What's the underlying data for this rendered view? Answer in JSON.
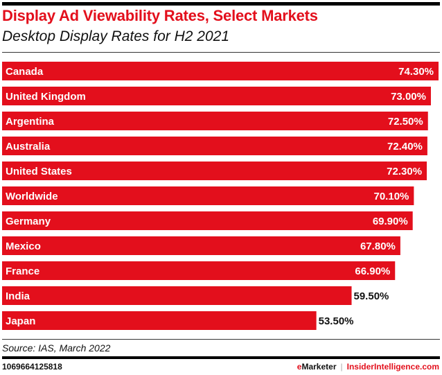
{
  "header": {
    "title": "Display Ad Viewability Rates, Select Markets",
    "subtitle": "Desktop Display Rates for H2 2021"
  },
  "footer": {
    "source": "Source: IAS, March 2022",
    "chart_id": "1069664125818",
    "brand_e": "e",
    "brand_marketer": "Marketer",
    "brand_separator": "|",
    "brand_site": "InsiderIntelligence.com"
  },
  "colors": {
    "bar": "#e30f1c",
    "label_inside": "#ffffff",
    "label_outside": "#111111"
  },
  "chart_data": {
    "type": "bar",
    "orientation": "horizontal",
    "title": "Display Ad Viewability Rates, Select Markets",
    "subtitle": "Desktop Display Rates for H2 2021",
    "xlabel": "",
    "ylabel": "",
    "unit": "%",
    "grid": false,
    "legend": "none",
    "xlim": [
      0,
      75
    ],
    "categories": [
      "Canada",
      "United Kingdom",
      "Argentina",
      "Australia",
      "United States",
      "Worldwide",
      "Germany",
      "Mexico",
      "France",
      "India",
      "Japan"
    ],
    "values": [
      74.3,
      73.0,
      72.5,
      72.4,
      72.3,
      70.1,
      69.9,
      67.8,
      66.9,
      59.5,
      53.5
    ],
    "value_labels": [
      "74.30%",
      "73.00%",
      "72.50%",
      "72.40%",
      "72.30%",
      "70.10%",
      "69.90%",
      "67.80%",
      "66.90%",
      "59.50%",
      "53.50%"
    ],
    "source": "Source: IAS, March 2022"
  }
}
